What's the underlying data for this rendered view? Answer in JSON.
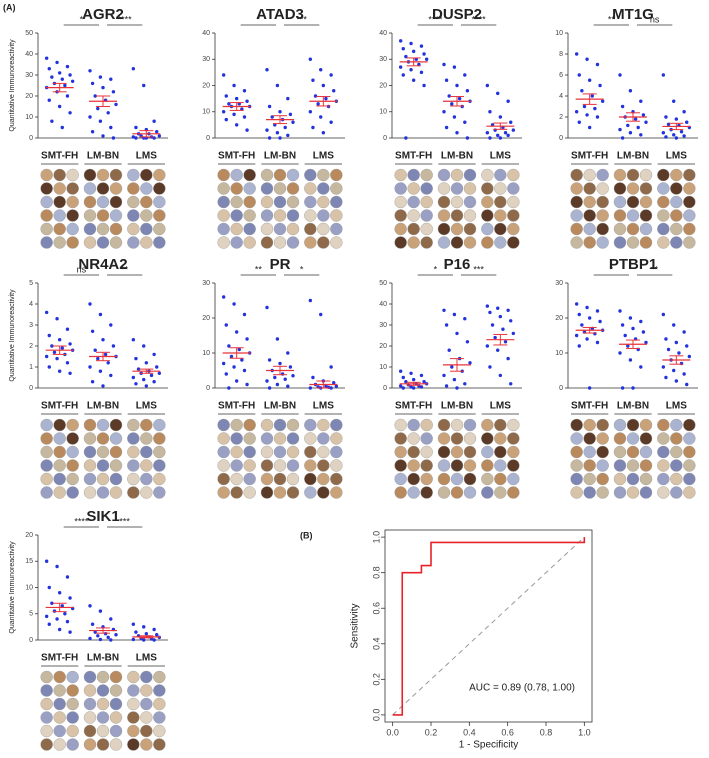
{
  "figure_labels": [
    "(A)",
    "(B)"
  ],
  "chart_data": [
    {
      "type": "strip",
      "title": "AGR2",
      "y_label": "Quantitative Immunoreactivity",
      "categories": [
        "SMT-FH",
        "LM-BN",
        "LMS"
      ],
      "comparisons": [
        "*",
        "****"
      ],
      "ylim": [
        0,
        50
      ],
      "yticks": [
        0,
        10,
        20,
        30,
        40,
        50
      ],
      "color": "#2233dd",
      "mean_color": "#e8333a",
      "points": [
        [
          38,
          36,
          34,
          33,
          31,
          30,
          29,
          28,
          27,
          26,
          25,
          24,
          22,
          20,
          18,
          15,
          12,
          8,
          5
        ],
        [
          32,
          29,
          28,
          26,
          24,
          22,
          20,
          18,
          16,
          14,
          12,
          10,
          8,
          5,
          3,
          1,
          0
        ],
        [
          33,
          25,
          8,
          5,
          4,
          3,
          2,
          2,
          1,
          1,
          0.5,
          0.5,
          0,
          0,
          0,
          0
        ]
      ],
      "means": [
        24,
        17.5,
        2
      ],
      "sems": [
        2,
        2.5,
        1.5
      ]
    },
    {
      "type": "strip",
      "title": "ATAD3",
      "categories": [
        "SMT-FH",
        "LM-BN",
        "LMS"
      ],
      "comparisons": [
        "*",
        "***"
      ],
      "ylim": [
        0,
        40
      ],
      "yticks": [
        0,
        10,
        20,
        30,
        40
      ],
      "color": "#2233dd",
      "mean_color": "#e8333a",
      "points": [
        [
          24,
          20,
          18,
          16,
          15,
          14,
          13,
          13,
          12,
          12,
          11,
          10,
          9,
          8,
          7,
          5,
          3
        ],
        [
          26,
          20,
          15,
          12,
          10,
          9,
          8,
          7,
          6,
          5,
          4,
          3,
          2,
          1,
          0,
          0
        ],
        [
          30,
          26,
          24,
          22,
          20,
          18,
          16,
          15,
          14,
          13,
          12,
          10,
          8,
          6,
          4,
          2
        ]
      ],
      "means": [
        12,
        7,
        14
      ],
      "sems": [
        1.5,
        1.5,
        1.8
      ]
    },
    {
      "type": "strip",
      "title": "DUSP2",
      "categories": [
        "SMT-FH",
        "LM-BN",
        "LMS"
      ],
      "comparisons": [
        "****",
        "****"
      ],
      "ylim": [
        0,
        40
      ],
      "yticks": [
        0,
        10,
        20,
        30,
        40
      ],
      "color": "#2233dd",
      "mean_color": "#e8333a",
      "points": [
        [
          37,
          36,
          35,
          34,
          33,
          32,
          31,
          30,
          30,
          29,
          28,
          27,
          26,
          25,
          24,
          22,
          20,
          0
        ],
        [
          28,
          27,
          24,
          22,
          20,
          18,
          16,
          15,
          14,
          13,
          12,
          10,
          8,
          6,
          4,
          2,
          0
        ],
        [
          20,
          17,
          14,
          10,
          8,
          6,
          5,
          4,
          3,
          3,
          2,
          2,
          1,
          1,
          0,
          0
        ]
      ],
      "means": [
        29,
        14,
        4.5
      ],
      "sems": [
        1.5,
        1.8,
        1.2
      ]
    },
    {
      "type": "strip",
      "title": "MT1G",
      "categories": [
        "SMT-FH",
        "LM-BN",
        "LMS"
      ],
      "comparisons": [
        "**",
        "ns"
      ],
      "ylim": [
        0,
        10
      ],
      "yticks": [
        0,
        2,
        4,
        6,
        8,
        10
      ],
      "color": "#2233dd",
      "mean_color": "#e8333a",
      "points": [
        [
          8,
          7.5,
          7,
          6,
          5.5,
          5,
          4.5,
          4,
          3.5,
          3,
          2.8,
          2.5,
          2.2,
          2,
          1.5,
          1
        ],
        [
          6,
          4.5,
          3.5,
          3,
          2.5,
          2.2,
          2,
          1.8,
          1.5,
          1.2,
          1,
          0.8,
          0.5,
          0.3,
          0
        ],
        [
          6,
          3.5,
          2.5,
          2,
          1.8,
          1.5,
          1.3,
          1.2,
          1,
          0.8,
          0.6,
          0.5,
          0.3,
          0.2,
          0.1,
          0
        ]
      ],
      "means": [
        3.7,
        2,
        1.1
      ],
      "sems": [
        0.5,
        0.4,
        0.3
      ]
    },
    {
      "type": "strip",
      "title": "NR4A2",
      "y_label": "Quantitative Immunoreactivity",
      "categories": [
        "SMT-FH",
        "LM-BN",
        "LMS"
      ],
      "comparisons": [
        "ns",
        "**"
      ],
      "ylim": [
        0,
        5
      ],
      "yticks": [
        0,
        1,
        2,
        3,
        4,
        5
      ],
      "color": "#2233dd",
      "mean_color": "#e8333a",
      "points": [
        [
          3.6,
          3.3,
          2.8,
          2.5,
          2.3,
          2.1,
          2,
          1.9,
          1.8,
          1.7,
          1.6,
          1.5,
          1.4,
          1.2,
          1,
          0.8,
          0.7
        ],
        [
          4,
          3.5,
          3,
          2.7,
          2.3,
          2,
          1.8,
          1.6,
          1.5,
          1.4,
          1.2,
          1,
          0.8,
          0.6,
          0.3,
          0.1
        ],
        [
          2.3,
          2,
          1.6,
          1.4,
          1.2,
          1,
          0.9,
          0.8,
          0.7,
          0.7,
          0.6,
          0.5,
          0.4,
          0.3,
          0.2,
          0.1
        ]
      ],
      "means": [
        1.8,
        1.5,
        0.8
      ],
      "sems": [
        0.2,
        0.2,
        0.1
      ]
    },
    {
      "type": "strip",
      "title": "PR",
      "categories": [
        "SMT-FH",
        "LM-BN",
        "LMS"
      ],
      "comparisons": [
        "**",
        "*"
      ],
      "ylim": [
        0,
        30
      ],
      "yticks": [
        0,
        10,
        20,
        30
      ],
      "color": "#2233dd",
      "mean_color": "#e8333a",
      "points": [
        [
          26,
          24,
          21,
          18,
          16,
          14,
          12,
          11,
          10,
          9,
          8,
          7,
          6,
          5,
          4,
          2,
          1,
          0
        ],
        [
          23,
          14,
          10,
          8,
          7,
          6,
          5,
          4,
          3.5,
          3,
          2.5,
          2,
          1,
          0.5,
          0
        ],
        [
          25,
          21,
          6,
          3,
          2,
          1.5,
          1,
          0.5,
          0.5,
          0.3,
          0.2,
          0,
          0,
          0
        ]
      ],
      "means": [
        10,
        5,
        1
      ],
      "sems": [
        1.5,
        1.2,
        1
      ]
    },
    {
      "type": "strip",
      "title": "P16",
      "categories": [
        "SMT-FH",
        "LM-BN",
        "LMS"
      ],
      "comparisons": [
        "*",
        "***"
      ],
      "ylim": [
        0,
        50
      ],
      "yticks": [
        0,
        10,
        20,
        30,
        40,
        50
      ],
      "color": "#2233dd",
      "mean_color": "#e8333a",
      "points": [
        [
          8,
          7,
          6,
          5,
          4,
          3,
          3,
          2,
          2,
          1.5,
          1,
          1,
          0.5,
          0.5,
          0,
          0
        ],
        [
          37,
          35,
          33,
          30,
          26,
          22,
          18,
          14,
          12,
          10,
          8,
          6,
          4,
          2,
          1,
          0
        ],
        [
          39,
          38,
          37,
          36,
          34,
          32,
          30,
          28,
          26,
          24,
          22,
          20,
          18,
          14,
          10,
          6,
          2
        ]
      ],
      "means": [
        2,
        11,
        23
      ],
      "sems": [
        0.7,
        3,
        2.5
      ]
    },
    {
      "type": "strip",
      "title": "PTBP1",
      "categories": [
        "SMT-FH",
        "LM-BN",
        "LMS"
      ],
      "comparisons": [
        "*",
        "**"
      ],
      "ylim": [
        0,
        30
      ],
      "yticks": [
        0,
        10,
        20,
        30
      ],
      "color": "#2233dd",
      "mean_color": "#e8333a",
      "points": [
        [
          24,
          23,
          22,
          21,
          20,
          19,
          18,
          17,
          16.5,
          16,
          15.5,
          15,
          14,
          13,
          12,
          0
        ],
        [
          22,
          20,
          19,
          18,
          17,
          16,
          15,
          14,
          13,
          12,
          11,
          10,
          8,
          6,
          0,
          0
        ],
        [
          21,
          18,
          16,
          14,
          13,
          12,
          11,
          10,
          9,
          8,
          7,
          6,
          5,
          4,
          3,
          2,
          1
        ]
      ],
      "means": [
        16.5,
        12.5,
        8
      ],
      "sems": [
        0.8,
        1.2,
        1.2
      ]
    },
    {
      "type": "strip",
      "title": "SIK1",
      "y_label": "Quantitative Immunoreactivity",
      "categories": [
        "SMT-FH",
        "LM-BN",
        "LMS"
      ],
      "comparisons": [
        "****",
        "***"
      ],
      "ylim": [
        0,
        20
      ],
      "yticks": [
        0,
        5,
        10,
        15,
        20
      ],
      "color": "#2233dd",
      "mean_color": "#e8333a",
      "points": [
        [
          15,
          14,
          12,
          10,
          9,
          8,
          7,
          6.5,
          6,
          5.5,
          5,
          4.5,
          4,
          3.5,
          3,
          2,
          1.5
        ],
        [
          6.5,
          5.5,
          4,
          3,
          2.5,
          2,
          1.5,
          1.2,
          1,
          0.8,
          0.5,
          0.3,
          0.1,
          0
        ],
        [
          3,
          2.5,
          2,
          1.5,
          1.2,
          1,
          0.8,
          0.6,
          0.5,
          0.3,
          0.2,
          0.1,
          0,
          0
        ]
      ],
      "means": [
        6.2,
        1.8,
        0.6
      ],
      "sems": [
        0.8,
        0.5,
        0.2
      ]
    },
    {
      "type": "line",
      "x_label": "1 - Specificity",
      "y_label": "Sensitivity",
      "annotation": "AUC = 0.89 (0.78, 1.00)",
      "color": "#e8222a",
      "x": [
        0,
        0.05,
        0.05,
        0.15,
        0.15,
        0.2,
        0.2,
        1,
        1
      ],
      "values": [
        0,
        0,
        0.8,
        0.8,
        0.84,
        0.84,
        0.97,
        0.97,
        1
      ],
      "xlim": [
        -0.04,
        1.04
      ],
      "ylim": [
        -0.04,
        1.04
      ],
      "xticks": [
        {
          "value": 0,
          "label": "0.0"
        },
        0.2,
        0.4,
        0.6,
        0.8,
        {
          "value": 1,
          "label": "1.0"
        }
      ],
      "yticks": [
        {
          "value": 0,
          "label": "0.0"
        },
        0.2,
        0.4,
        0.6,
        0.8,
        {
          "value": 1,
          "label": "1.0"
        }
      ]
    }
  ]
}
